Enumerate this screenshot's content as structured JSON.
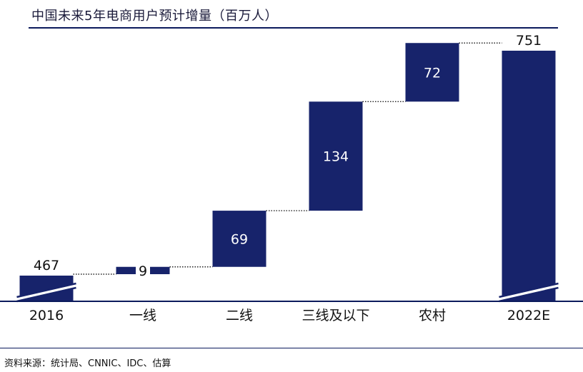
{
  "header": {
    "title": "中国未来5年电商用户预计增量（百万人）"
  },
  "footer": {
    "source": "资料来源：统计局、CNNIC、IDC、估算"
  },
  "colors": {
    "bar": "#17236b",
    "axis": "#0b1a5c",
    "label_inside": "#ffffff",
    "label_outside": "#111111"
  },
  "chart_data": {
    "type": "bar",
    "subtype": "waterfall",
    "categories": [
      "2016",
      "一线",
      "二线",
      "三线及以下",
      "农村",
      "2022E"
    ],
    "values": [
      467,
      9,
      69,
      134,
      72,
      751
    ],
    "labels": [
      "467",
      "9",
      "69",
      "134",
      "72",
      "751"
    ],
    "kinds": [
      "total",
      "delta",
      "delta",
      "delta",
      "delta",
      "total"
    ],
    "axis_break": true,
    "grid": false
  }
}
